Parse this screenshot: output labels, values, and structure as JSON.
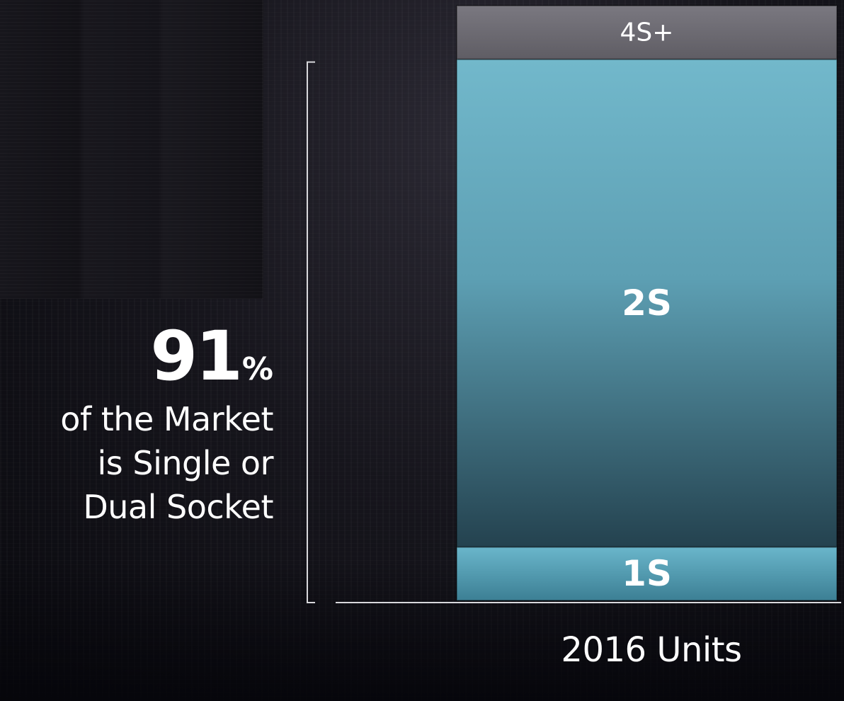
{
  "headline": {
    "number": "91",
    "unit": "%",
    "lines": [
      "of the Market",
      "is Single or",
      "Dual Socket"
    ]
  },
  "chart_data": {
    "type": "bar",
    "stacked": true,
    "categories": [
      "2016 Units"
    ],
    "xlabel": "2016 Units",
    "ylabel": "",
    "title": "",
    "grid": false,
    "legend": "none",
    "series": [
      {
        "name": "1S",
        "values": [
          9
        ],
        "color": "#5aaec4"
      },
      {
        "name": "2S",
        "values": [
          82
        ],
        "color": "#6fb6c9"
      },
      {
        "name": "4S+",
        "values": [
          9
        ],
        "color": "#6d6b72"
      }
    ]
  }
}
